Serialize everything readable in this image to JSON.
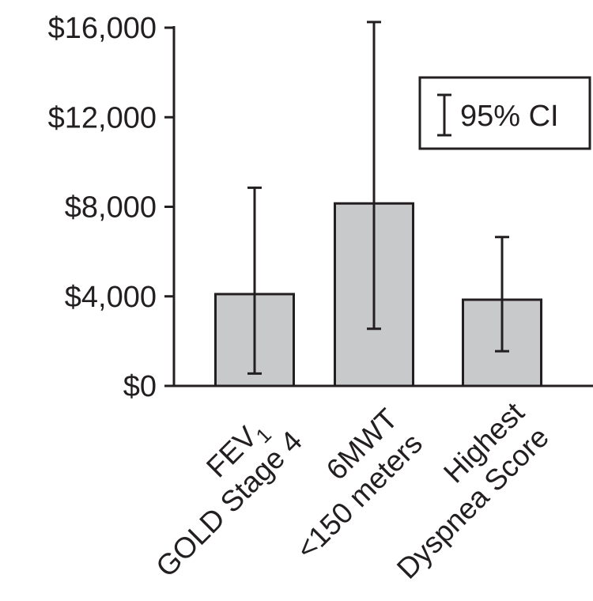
{
  "chart_data": {
    "type": "bar",
    "categories": [
      {
        "line1": "FEV",
        "line1_sub": "1",
        "line2": "GOLD Stage 4"
      },
      {
        "line1": "6MWT",
        "line1_sub": "",
        "line2": "<150 meters"
      },
      {
        "line1": "Highest",
        "line1_sub": "",
        "line2": "Dyspnea Score"
      }
    ],
    "values": [
      4100,
      8150,
      3850
    ],
    "ci_lower": [
      550,
      2550,
      1550
    ],
    "ci_upper": [
      8850,
      16250,
      6650
    ],
    "ylim": [
      0,
      16000
    ],
    "yticks": [
      0,
      4000,
      8000,
      12000,
      16000
    ],
    "ytick_labels": [
      "$0",
      "$4,000",
      "$8,000",
      "$12,000",
      "$16,000"
    ],
    "title": "",
    "xlabel": "",
    "ylabel": "",
    "legend": {
      "label": "95% CI",
      "placement": "top-right"
    },
    "grid": false,
    "bar_color": "#c8c9cb",
    "line_color": "#231f20"
  }
}
